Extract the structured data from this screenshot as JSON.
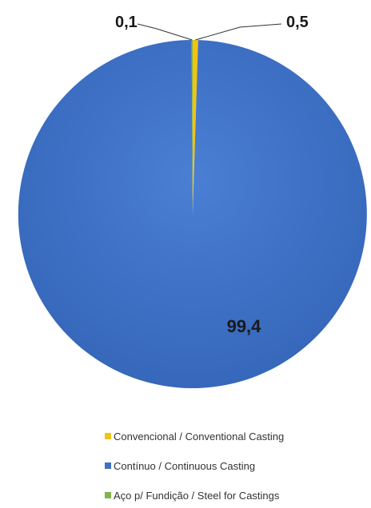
{
  "chart_data": {
    "type": "pie",
    "categories": [
      "Convencional / Conventional Casting",
      "Contínuo / Continuous Casting",
      "Aço p/ Fundição / Steel for Castings"
    ],
    "values": [
      0.5,
      99.4,
      0.1
    ],
    "value_labels": [
      "0,5",
      "99,4",
      "0,1"
    ],
    "colors": [
      "#f2c314",
      "#3f72c6",
      "#7fb54a"
    ],
    "title": "",
    "legend_position": "bottom"
  }
}
